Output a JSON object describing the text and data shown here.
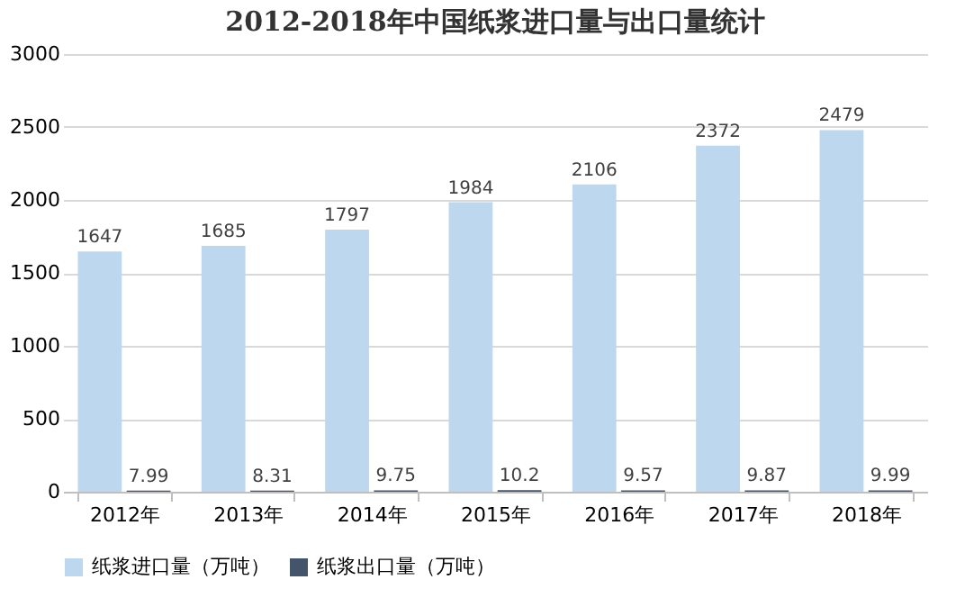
{
  "chart_data": {
    "type": "bar",
    "title": "2012-2018年中国纸浆进口量与出口量统计",
    "categories": [
      "2012年",
      "2013年",
      "2014年",
      "2015年",
      "2016年",
      "2017年",
      "2018年"
    ],
    "series": [
      {
        "name": "纸浆进口量（万吨）",
        "color": "#bdd7ee",
        "values": [
          1647,
          1685,
          1797,
          1984,
          2106,
          2372,
          2479
        ]
      },
      {
        "name": "纸浆出口量（万吨）",
        "color": "#44546a",
        "values": [
          7.99,
          8.31,
          9.75,
          10.2,
          9.57,
          9.87,
          9.99
        ]
      }
    ],
    "ylim": [
      0,
      3000
    ],
    "yticks": [
      0,
      500,
      1000,
      1500,
      2000,
      2500,
      3000
    ],
    "grid": "y",
    "legend": "bottom",
    "data_labels": true
  }
}
